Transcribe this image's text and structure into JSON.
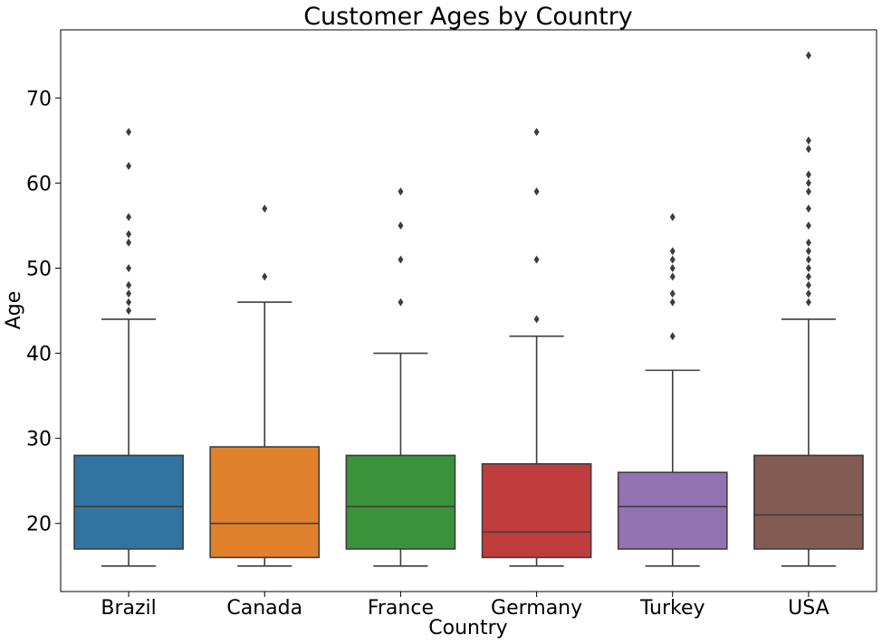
{
  "chart_data": {
    "type": "boxplot",
    "title": "Customer Ages by Country",
    "xlabel": "Country",
    "ylabel": "Age",
    "ylim": [
      12,
      78
    ],
    "yticks": [
      20,
      30,
      40,
      50,
      60,
      70
    ],
    "grid": false,
    "legend": "none",
    "categories": [
      "Brazil",
      "Canada",
      "France",
      "Germany",
      "Turkey",
      "USA"
    ],
    "colors": [
      "#3274a1",
      "#e1812c",
      "#3a923a",
      "#c03d3e",
      "#9372b2",
      "#845b53"
    ],
    "edge_color": "#3d3d3d",
    "boxes": [
      {
        "name": "Brazil",
        "min": 15,
        "q1": 17,
        "median": 22,
        "q3": 28,
        "max": 44,
        "outliers": [
          45,
          46,
          47,
          48,
          50,
          53,
          54,
          56,
          62,
          66
        ]
      },
      {
        "name": "Canada",
        "min": 15,
        "q1": 16,
        "median": 20,
        "q3": 29,
        "max": 46,
        "outliers": [
          49,
          57
        ]
      },
      {
        "name": "France",
        "min": 15,
        "q1": 17,
        "median": 22,
        "q3": 28,
        "max": 40,
        "outliers": [
          46,
          51,
          55,
          59
        ]
      },
      {
        "name": "Germany",
        "min": 15,
        "q1": 16,
        "median": 19,
        "q3": 27,
        "max": 42,
        "outliers": [
          44,
          51,
          59,
          66
        ]
      },
      {
        "name": "Turkey",
        "min": 15,
        "q1": 17,
        "median": 22,
        "q3": 26,
        "max": 38,
        "outliers": [
          42,
          46,
          47,
          49,
          50,
          51,
          52,
          56
        ]
      },
      {
        "name": "USA",
        "min": 15,
        "q1": 17,
        "median": 21,
        "q3": 28,
        "max": 44,
        "outliers": [
          46,
          47,
          48,
          49,
          50,
          51,
          52,
          53,
          55,
          57,
          59,
          60,
          61,
          64,
          65,
          75
        ]
      }
    ]
  }
}
